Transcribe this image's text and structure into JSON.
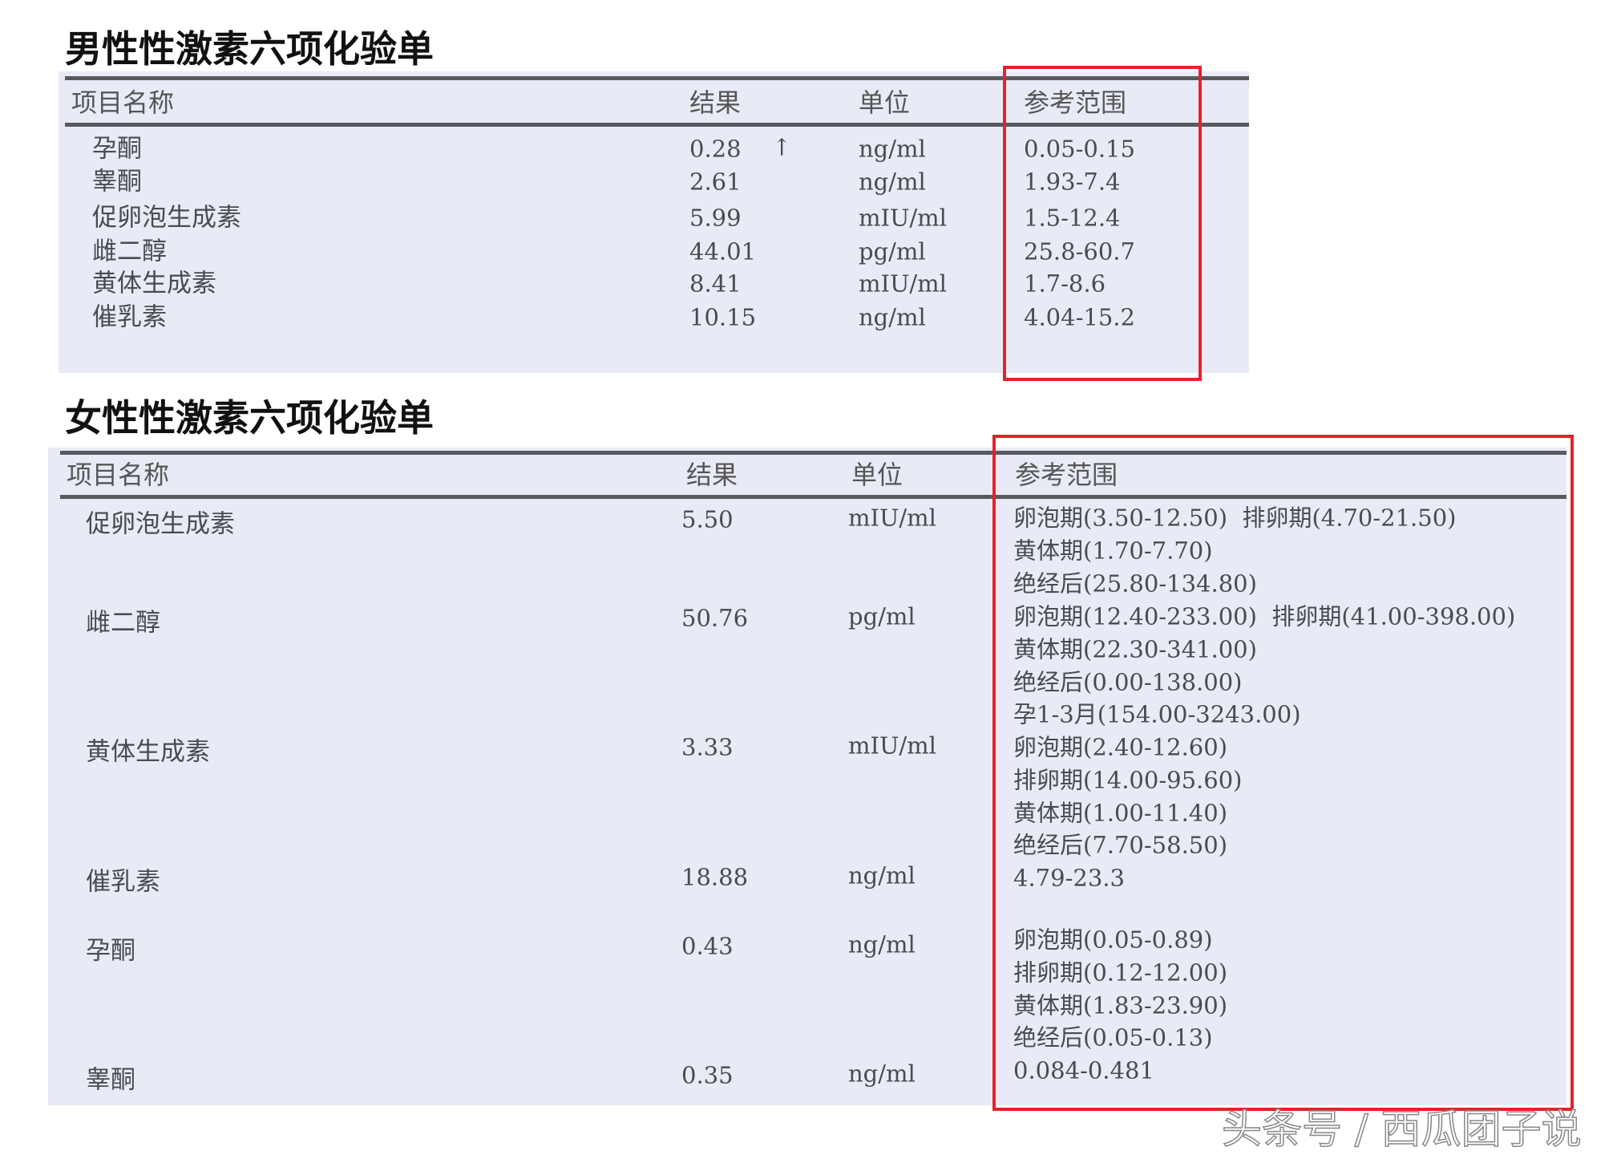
{
  "male": {
    "title": "男性性激素六项化验单",
    "headers": {
      "name": "项目名称",
      "result": "结果",
      "unit": "单位",
      "ref": "参考范围"
    },
    "rows": [
      {
        "name": "孕酮",
        "result": "0.28",
        "flag": "↑",
        "unit": "ng/ml",
        "ref": "0.05-0.15"
      },
      {
        "name": "睾酮",
        "result": "2.61",
        "flag": "",
        "unit": "ng/ml",
        "ref": "1.93-7.4"
      },
      {
        "name": "促卵泡生成素",
        "result": "5.99",
        "flag": "",
        "unit": "mIU/ml",
        "ref": "1.5-12.4"
      },
      {
        "name": "雌二醇",
        "result": "44.01",
        "flag": "",
        "unit": "pg/ml",
        "ref": "25.8-60.7"
      },
      {
        "name": "黄体生成素",
        "result": "8.41",
        "flag": "",
        "unit": "mIU/ml",
        "ref": "1.7-8.6"
      },
      {
        "name": "催乳素",
        "result": "10.15",
        "flag": "",
        "unit": "ng/ml",
        "ref": "4.04-15.2"
      }
    ]
  },
  "female": {
    "title": "女性性激素六项化验单",
    "headers": {
      "name": "项目名称",
      "result": "结果",
      "unit": "单位",
      "ref": "参考范围"
    },
    "rows": [
      {
        "name": "促卵泡生成素",
        "result": "5.50",
        "unit": "mIU/ml",
        "ref": [
          "卵泡期(3.50-12.50)  排卵期(4.70-21.50)",
          "黄体期(1.70-7.70)",
          "绝经后(25.80-134.80)"
        ]
      },
      {
        "name": "雌二醇",
        "result": "50.76",
        "unit": "pg/ml",
        "ref": [
          "卵泡期(12.40-233.00)  排卵期(41.00-398.00)",
          "黄体期(22.30-341.00)",
          "绝经后(0.00-138.00)",
          "孕1-3月(154.00-3243.00)"
        ]
      },
      {
        "name": "黄体生成素",
        "result": "3.33",
        "unit": "mIU/ml",
        "ref": [
          "卵泡期(2.40-12.60)",
          "排卵期(14.00-95.60)",
          "黄体期(1.00-11.40)",
          "绝经后(7.70-58.50)"
        ]
      },
      {
        "name": "催乳素",
        "result": "18.88",
        "unit": "ng/ml",
        "ref": [
          "4.79-23.3"
        ]
      },
      {
        "name": "孕酮",
        "result": "0.43",
        "unit": "ng/ml",
        "ref": [
          "卵泡期(0.05-0.89)",
          "排卵期(0.12-12.00)",
          "黄体期(1.83-23.90)",
          "绝经后(0.05-0.13)"
        ]
      },
      {
        "name": "睾酮",
        "result": "0.35",
        "unit": "ng/ml",
        "ref": [
          "0.084-0.481"
        ]
      }
    ]
  },
  "watermark": "头条号 / 西瓜团子说",
  "colors": {
    "highlight": "#e8202a",
    "paper": "#e8ebf5"
  }
}
